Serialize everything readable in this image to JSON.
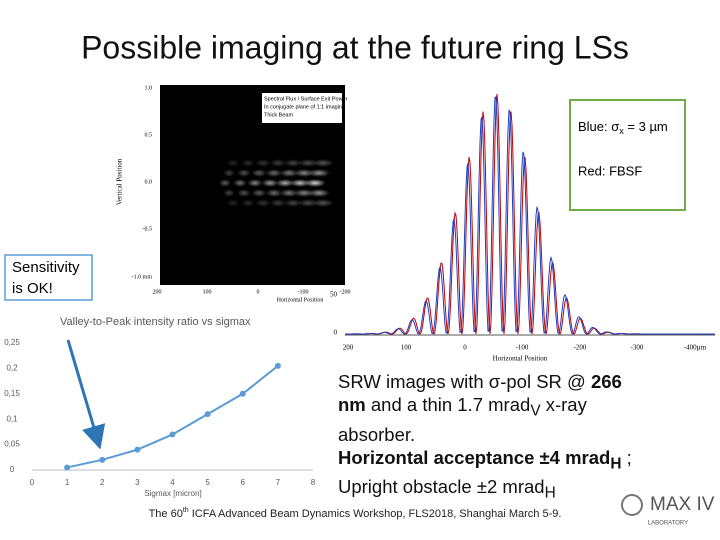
{
  "title": "Possible imaging at the future ring LSs",
  "legend_box": {
    "blue_prefix": "Blue: σ",
    "blue_sub": "x",
    "blue_suffix": " = 3 µm",
    "red": "Red: FBSF"
  },
  "callout": {
    "line1": "Sensitivity",
    "line2": "is OK!"
  },
  "image_axes": {
    "caption": [
      "Spectral Flux / Surface Exit Power",
      "In conjugate plane of 1:1 imaging",
      "Thick Beam"
    ],
    "y_label": "Vertical Position",
    "yticks": [
      "1.0",
      "0.5",
      "0.0",
      "-0.5",
      "-1.0 mm"
    ],
    "xticks": [
      "200",
      "100",
      "0",
      "-100",
      "-200"
    ],
    "x_label": "Horizontal Position"
  },
  "profile": {
    "yticks": [
      "50",
      "0"
    ],
    "xticks": [
      "200",
      "100",
      "0",
      "-100",
      "-200",
      "-300",
      "-400µm"
    ],
    "x_label": "Horizontal Position"
  },
  "body": {
    "p1": "SRW images with σ-pol SR @ ",
    "p1b": "266 nm",
    "p2": " and a thin 1.7 mrad",
    "p2sub": "V",
    "p3": " x-ray absorber.",
    "h1": "Horizontal acceptance ±4 mrad",
    "h1sub": "H",
    "h2": " ; Upright obstacle ±2 mrad",
    "h2sub": "H"
  },
  "footer": {
    "a": "The 60",
    "sup": "th",
    "b": " ICFA Advanced Beam Dynamics Workshop, FLS2018, Shanghai March 5-9."
  },
  "logo": {
    "name": "MAX IV",
    "sub": "LABORATORY"
  },
  "chart_data": {
    "type": "line",
    "title": "Valley-to-Peak intensity ratio vs sigmax",
    "x_label": "Sigmax [micron]",
    "x": [
      1,
      2,
      3,
      4,
      5,
      6,
      7
    ],
    "values": [
      0.005,
      0.02,
      0.04,
      0.07,
      0.11,
      0.15,
      0.205
    ],
    "color": "#5b9bd5",
    "xlim": [
      0,
      8
    ],
    "xticks": [
      0,
      1,
      2,
      3,
      4,
      5,
      6,
      7,
      8
    ],
    "ylim": [
      0,
      0.25
    ],
    "yticks": [
      0,
      {
        "value": 0.05,
        "label": "0,05"
      },
      {
        "value": 0.1,
        "label": "0,1"
      },
      {
        "value": 0.15,
        "label": "0,15"
      },
      {
        "value": 0.2,
        "label": "0,2"
      },
      {
        "value": 0.25,
        "label": "0,25"
      }
    ]
  }
}
